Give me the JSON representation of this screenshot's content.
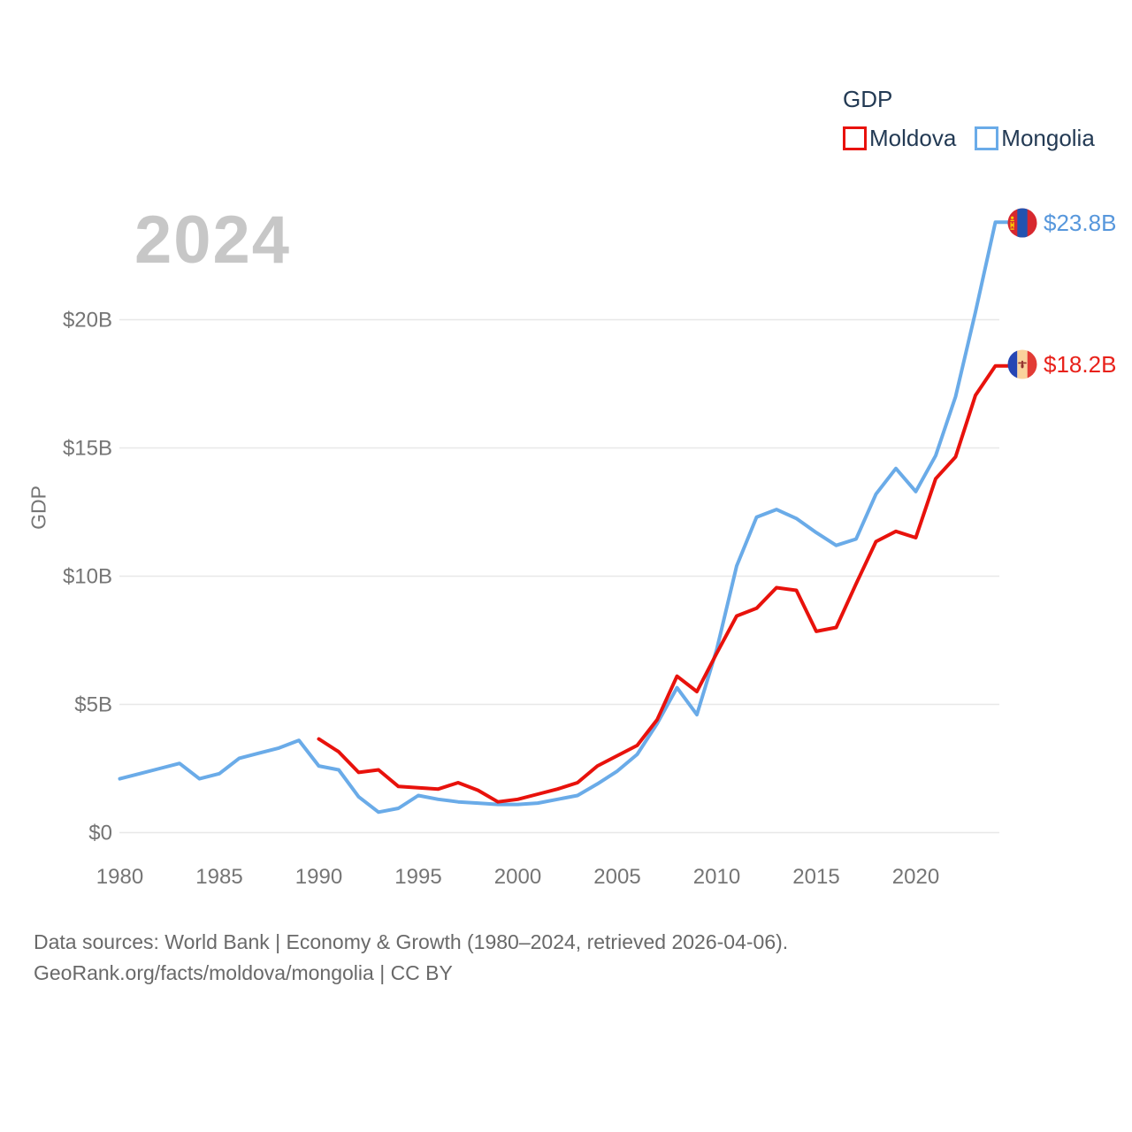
{
  "watermark_year": "2024",
  "legend": {
    "title": "GDP",
    "items": [
      {
        "label": "Moldova",
        "color": "#e8120c"
      },
      {
        "label": "Mongolia",
        "color": "#6aabe8"
      }
    ]
  },
  "end_labels": [
    {
      "series": "Mongolia",
      "value_label": "$23.8B",
      "text_color": "#5797dc",
      "flag_icon": "mongolia-flag-icon"
    },
    {
      "series": "Moldova",
      "value_label": "$18.2B",
      "text_color": "#e8211a",
      "flag_icon": "moldova-flag-icon"
    }
  ],
  "footer": {
    "line1": "Data sources: World Bank | Economy & Growth (1980–2024, retrieved 2026-04-06).",
    "line2": "GeoRank.org/facts/moldova/mongolia | CC BY"
  },
  "chart_data": {
    "type": "line",
    "title": "GDP",
    "ylabel": "GDP",
    "xlabel": "",
    "xlim": [
      1980,
      2024
    ],
    "ylim": [
      0,
      24
    ],
    "grid": true,
    "grid_color": "#e8e8e8",
    "axis_text_color": "#757575",
    "legend_position": "top-right",
    "x_ticks": [
      1980,
      1985,
      1990,
      1995,
      2000,
      2005,
      2010,
      2015,
      2020
    ],
    "y_ticks": [
      {
        "value": 0,
        "label": "$0"
      },
      {
        "value": 5,
        "label": "$5B"
      },
      {
        "value": 10,
        "label": "$10B"
      },
      {
        "value": 15,
        "label": "$15B"
      },
      {
        "value": 20,
        "label": "$20B"
      }
    ],
    "unit": "billion USD",
    "series": [
      {
        "name": "Moldova",
        "color": "#e8120c",
        "start_year": 1990,
        "end_value_label": "$18.2B",
        "values": [
          3.65,
          3.15,
          2.35,
          2.45,
          1.8,
          1.75,
          1.7,
          1.95,
          1.65,
          1.2,
          1.3,
          1.5,
          1.7,
          1.95,
          2.6,
          3.0,
          3.4,
          4.4,
          6.1,
          5.5,
          7.0,
          8.45,
          8.75,
          9.55,
          9.45,
          7.85,
          8.0,
          9.7,
          11.35,
          11.75,
          11.5,
          13.8,
          14.65,
          17.05,
          18.2
        ]
      },
      {
        "name": "Mongolia",
        "color": "#6aabe8",
        "start_year": 1980,
        "end_value_label": "$23.8B",
        "values": [
          2.1,
          2.3,
          2.5,
          2.7,
          2.1,
          2.3,
          2.9,
          3.1,
          3.3,
          3.6,
          2.6,
          2.45,
          1.4,
          0.8,
          0.95,
          1.45,
          1.3,
          1.2,
          1.15,
          1.1,
          1.1,
          1.15,
          1.3,
          1.45,
          1.9,
          2.4,
          3.05,
          4.25,
          5.65,
          4.6,
          7.15,
          10.4,
          12.3,
          12.6,
          12.25,
          11.7,
          11.2,
          11.45,
          13.2,
          14.2,
          13.3,
          14.7,
          17.0,
          20.3,
          23.8
        ]
      }
    ]
  }
}
